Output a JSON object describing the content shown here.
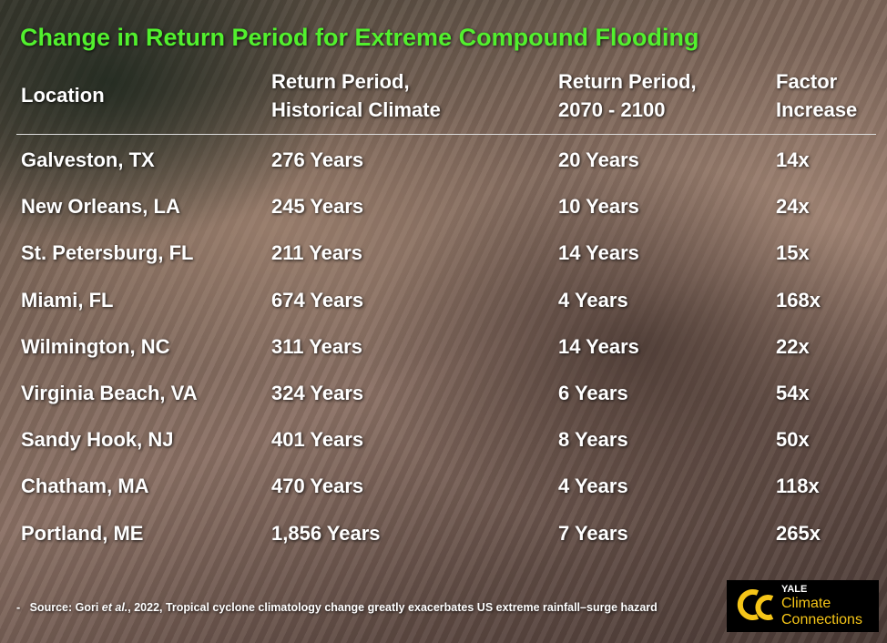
{
  "header": {
    "title": "Change in Return Period for Extreme Compound Flooding"
  },
  "table": {
    "columns": [
      [
        "Location"
      ],
      [
        "Return Period,",
        "Historical Climate"
      ],
      [
        "Return Period,",
        "2070 - 2100"
      ],
      [
        "Factor",
        "Increase"
      ]
    ],
    "rows": [
      [
        "Galveston, TX",
        "276 Years",
        "20 Years",
        "14x"
      ],
      [
        "New Orleans, LA",
        "245 Years",
        "10 Years",
        "24x"
      ],
      [
        "St. Petersburg, FL",
        "211 Years",
        "14 Years",
        "15x"
      ],
      [
        "Miami, FL",
        "674 Years",
        "4 Years",
        "168x"
      ],
      [
        "Wilmington, NC",
        "311 Years",
        "14 Years",
        "22x"
      ],
      [
        "Virginia Beach, VA",
        "324 Years",
        "6 Years",
        "54x"
      ],
      [
        "Sandy Hook, NJ",
        "401 Years",
        "8 Years",
        "50x"
      ],
      [
        "Chatham, MA",
        "470 Years",
        "4 Years",
        "118x"
      ],
      [
        "Portland, ME",
        "1,856 Years",
        "7 Years",
        "265x"
      ]
    ]
  },
  "footer": {
    "bullet": "-",
    "source": [
      "Source: Gori ",
      "et al.",
      ", 2022, Tropical cyclone climatology change greatly exacerbates US extreme rainfall–surge hazard"
    ]
  },
  "logo": {
    "lines": [
      "YALE",
      "Climate",
      "Connections"
    ]
  }
}
